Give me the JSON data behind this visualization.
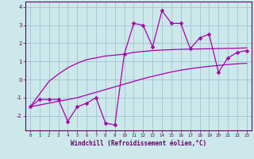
{
  "x_data": [
    0,
    1,
    2,
    3,
    4,
    5,
    6,
    7,
    8,
    9,
    10,
    11,
    12,
    13,
    14,
    15,
    16,
    17,
    18,
    19,
    20,
    21,
    22,
    23
  ],
  "y_main": [
    -1.5,
    -1.1,
    -1.1,
    -1.1,
    -2.3,
    -1.5,
    -1.3,
    -1.0,
    -2.4,
    -2.5,
    1.4,
    3.1,
    3.0,
    1.8,
    3.8,
    3.1,
    3.1,
    1.7,
    2.3,
    2.5,
    0.4,
    1.2,
    1.5,
    1.6
  ],
  "y_line_upper": [
    -1.5,
    -0.8,
    -0.1,
    0.3,
    0.65,
    0.9,
    1.1,
    1.2,
    1.3,
    1.35,
    1.4,
    1.5,
    1.55,
    1.6,
    1.63,
    1.65,
    1.67,
    1.68,
    1.69,
    1.7,
    1.71,
    1.72,
    1.73,
    1.75
  ],
  "y_line_lower": [
    -1.5,
    -1.4,
    -1.3,
    -1.2,
    -1.1,
    -1.0,
    -0.85,
    -0.7,
    -0.55,
    -0.4,
    -0.25,
    -0.1,
    0.05,
    0.18,
    0.3,
    0.42,
    0.52,
    0.6,
    0.67,
    0.73,
    0.78,
    0.83,
    0.87,
    0.9
  ],
  "main_color": "#aa00aa",
  "line_color": "#aa00aa",
  "bg_color": "#cce8ea",
  "grid_color": "#99bbcc",
  "spine_color": "#660066",
  "tick_color": "#660066",
  "xlabel": "Windchill (Refroidissement éolien,°C)",
  "xlim": [
    -0.5,
    23.5
  ],
  "ylim": [
    -2.8,
    4.3
  ],
  "yticks": [
    -2,
    -1,
    0,
    1,
    2,
    3,
    4
  ],
  "xticks": [
    0,
    1,
    2,
    3,
    4,
    5,
    6,
    7,
    8,
    9,
    10,
    11,
    12,
    13,
    14,
    15,
    16,
    17,
    18,
    19,
    20,
    21,
    22,
    23
  ],
  "marker": "D",
  "markersize": 2.5,
  "linewidth": 0.9
}
